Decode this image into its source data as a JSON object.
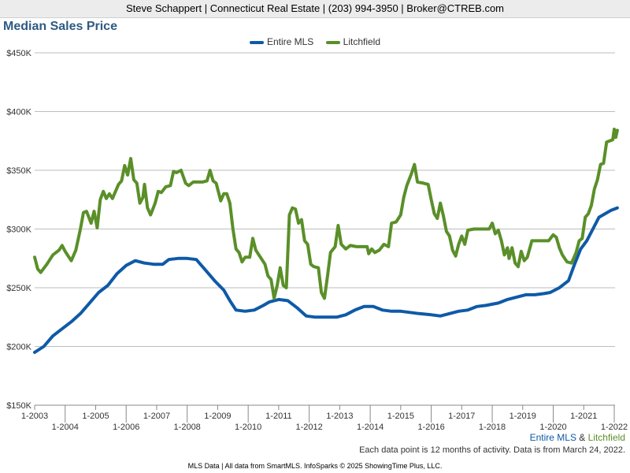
{
  "header": {
    "contact": "Steve Schappert | Connecticut Real Estate | (203) 994-3950 | Broker@CTREB.com"
  },
  "colors": {
    "mls": "#0e5aa7",
    "litchfield": "#5a8f29",
    "title": "#2f5a83",
    "grid": "#bdbdbd"
  },
  "chart_data": {
    "type": "line",
    "title": "Median Sales Price",
    "xlabel": "",
    "ylabel": "",
    "xlim": [
      2003,
      2022.1
    ],
    "ylim": [
      150000,
      450000
    ],
    "y_ticks": [
      150000,
      200000,
      250000,
      300000,
      350000,
      400000,
      450000
    ],
    "y_tick_labels": [
      "$150K",
      "$200K",
      "$250K",
      "$300K",
      "$350K",
      "$400K",
      "$450K"
    ],
    "x_ticks": [
      2003,
      2004,
      2005,
      2006,
      2007,
      2008,
      2009,
      2010,
      2011,
      2012,
      2013,
      2014,
      2015,
      2016,
      2017,
      2018,
      2019,
      2020,
      2021,
      2022
    ],
    "x_tick_labels": [
      "1-2003",
      "1-2004",
      "1-2005",
      "1-2006",
      "1-2007",
      "1-2008",
      "1-2009",
      "1-2010",
      "1-2011",
      "1-2012",
      "1-2013",
      "1-2014",
      "1-2015",
      "1-2016",
      "1-2017",
      "1-2018",
      "1-2019",
      "1-2020",
      "1-2021",
      "1-2022"
    ],
    "grid": "horizontal",
    "legend_position": "top-center",
    "series": [
      {
        "name": "Entire MLS",
        "color": "#0e5aa7",
        "points": [
          [
            2003.0,
            195000
          ],
          [
            2003.3,
            200000
          ],
          [
            2003.6,
            209000
          ],
          [
            2003.9,
            215000
          ],
          [
            2004.2,
            221000
          ],
          [
            2004.5,
            228000
          ],
          [
            2004.8,
            237000
          ],
          [
            2005.1,
            246000
          ],
          [
            2005.4,
            252000
          ],
          [
            2005.7,
            262000
          ],
          [
            2006.0,
            269000
          ],
          [
            2006.3,
            273000
          ],
          [
            2006.6,
            271000
          ],
          [
            2006.9,
            270000
          ],
          [
            2007.2,
            270000
          ],
          [
            2007.4,
            274000
          ],
          [
            2007.7,
            275000
          ],
          [
            2008.0,
            275000
          ],
          [
            2008.3,
            274000
          ],
          [
            2008.6,
            265000
          ],
          [
            2008.9,
            256000
          ],
          [
            2009.2,
            248000
          ],
          [
            2009.4,
            239000
          ],
          [
            2009.6,
            231000
          ],
          [
            2009.9,
            230000
          ],
          [
            2010.2,
            231000
          ],
          [
            2010.5,
            235000
          ],
          [
            2010.7,
            238000
          ],
          [
            2011.0,
            240000
          ],
          [
            2011.3,
            239000
          ],
          [
            2011.6,
            233000
          ],
          [
            2011.9,
            226000
          ],
          [
            2012.2,
            225000
          ],
          [
            2012.5,
            225000
          ],
          [
            2012.9,
            225000
          ],
          [
            2013.2,
            227000
          ],
          [
            2013.5,
            231000
          ],
          [
            2013.8,
            234000
          ],
          [
            2014.1,
            234000
          ],
          [
            2014.4,
            231000
          ],
          [
            2014.7,
            230000
          ],
          [
            2015.0,
            230000
          ],
          [
            2015.3,
            229000
          ],
          [
            2015.6,
            228000
          ],
          [
            2016.0,
            227000
          ],
          [
            2016.3,
            226000
          ],
          [
            2016.6,
            228000
          ],
          [
            2016.9,
            230000
          ],
          [
            2017.2,
            231000
          ],
          [
            2017.5,
            234000
          ],
          [
            2017.8,
            235000
          ],
          [
            2018.2,
            237000
          ],
          [
            2018.5,
            240000
          ],
          [
            2018.8,
            242000
          ],
          [
            2019.1,
            244000
          ],
          [
            2019.4,
            244000
          ],
          [
            2019.7,
            245000
          ],
          [
            2019.9,
            246000
          ],
          [
            2020.2,
            250000
          ],
          [
            2020.5,
            256000
          ],
          [
            2020.7,
            270000
          ],
          [
            2020.9,
            283000
          ],
          [
            2021.1,
            290000
          ],
          [
            2021.3,
            300000
          ],
          [
            2021.5,
            310000
          ],
          [
            2021.7,
            313000
          ],
          [
            2021.9,
            316000
          ],
          [
            2022.1,
            318000
          ]
        ]
      },
      {
        "name": "Litchfield",
        "color": "#5a8f29",
        "points": [
          [
            2003.0,
            276000
          ],
          [
            2003.1,
            266000
          ],
          [
            2003.2,
            263000
          ],
          [
            2003.4,
            270000
          ],
          [
            2003.6,
            278000
          ],
          [
            2003.8,
            282000
          ],
          [
            2003.9,
            286000
          ],
          [
            2004.0,
            281000
          ],
          [
            2004.1,
            277000
          ],
          [
            2004.2,
            273000
          ],
          [
            2004.35,
            282000
          ],
          [
            2004.5,
            300000
          ],
          [
            2004.6,
            314000
          ],
          [
            2004.7,
            315000
          ],
          [
            2004.85,
            305000
          ],
          [
            2004.95,
            315000
          ],
          [
            2005.05,
            301000
          ],
          [
            2005.15,
            325000
          ],
          [
            2005.25,
            332000
          ],
          [
            2005.35,
            326000
          ],
          [
            2005.45,
            330000
          ],
          [
            2005.55,
            326000
          ],
          [
            2005.75,
            338000
          ],
          [
            2005.85,
            341000
          ],
          [
            2005.95,
            354000
          ],
          [
            2006.05,
            346000
          ],
          [
            2006.15,
            360000
          ],
          [
            2006.25,
            342000
          ],
          [
            2006.35,
            339000
          ],
          [
            2006.45,
            322000
          ],
          [
            2006.55,
            327000
          ],
          [
            2006.6,
            338000
          ],
          [
            2006.7,
            318000
          ],
          [
            2006.8,
            312000
          ],
          [
            2006.95,
            322000
          ],
          [
            2007.05,
            332000
          ],
          [
            2007.15,
            331000
          ],
          [
            2007.3,
            336000
          ],
          [
            2007.45,
            337000
          ],
          [
            2007.55,
            349000
          ],
          [
            2007.65,
            348000
          ],
          [
            2007.8,
            350000
          ],
          [
            2007.95,
            339000
          ],
          [
            2008.05,
            337000
          ],
          [
            2008.2,
            340000
          ],
          [
            2008.5,
            340000
          ],
          [
            2008.65,
            341000
          ],
          [
            2008.75,
            350000
          ],
          [
            2008.85,
            341000
          ],
          [
            2008.95,
            339000
          ],
          [
            2009.1,
            324000
          ],
          [
            2009.2,
            330000
          ],
          [
            2009.3,
            330000
          ],
          [
            2009.4,
            322000
          ],
          [
            2009.5,
            300000
          ],
          [
            2009.6,
            283000
          ],
          [
            2009.7,
            280000
          ],
          [
            2009.8,
            272000
          ],
          [
            2009.9,
            276000
          ],
          [
            2010.05,
            276000
          ],
          [
            2010.15,
            292000
          ],
          [
            2010.25,
            282000
          ],
          [
            2010.4,
            276000
          ],
          [
            2010.55,
            270000
          ],
          [
            2010.65,
            260000
          ],
          [
            2010.75,
            257000
          ],
          [
            2010.85,
            241000
          ],
          [
            2010.95,
            252000
          ],
          [
            2011.05,
            267000
          ],
          [
            2011.15,
            252000
          ],
          [
            2011.25,
            250000
          ],
          [
            2011.35,
            312000
          ],
          [
            2011.45,
            318000
          ],
          [
            2011.55,
            317000
          ],
          [
            2011.65,
            305000
          ],
          [
            2011.75,
            308000
          ],
          [
            2011.85,
            290000
          ],
          [
            2011.95,
            287000
          ],
          [
            2012.05,
            270000
          ],
          [
            2012.15,
            268000
          ],
          [
            2012.3,
            267000
          ],
          [
            2012.4,
            246000
          ],
          [
            2012.5,
            241000
          ],
          [
            2012.6,
            260000
          ],
          [
            2012.7,
            280000
          ],
          [
            2012.85,
            285000
          ],
          [
            2012.95,
            303000
          ],
          [
            2013.05,
            287000
          ],
          [
            2013.2,
            283000
          ],
          [
            2013.35,
            286000
          ],
          [
            2013.55,
            285000
          ],
          [
            2013.75,
            285000
          ],
          [
            2013.9,
            285000
          ],
          [
            2013.95,
            279000
          ],
          [
            2014.05,
            283000
          ],
          [
            2014.15,
            280000
          ],
          [
            2014.3,
            282000
          ],
          [
            2014.45,
            287000
          ],
          [
            2014.6,
            285000
          ],
          [
            2014.7,
            305000
          ],
          [
            2014.85,
            306000
          ],
          [
            2015.0,
            312000
          ],
          [
            2015.1,
            327000
          ],
          [
            2015.2,
            337000
          ],
          [
            2015.35,
            347000
          ],
          [
            2015.45,
            355000
          ],
          [
            2015.55,
            340000
          ],
          [
            2015.75,
            339000
          ],
          [
            2015.9,
            338000
          ],
          [
            2016.0,
            325000
          ],
          [
            2016.1,
            313000
          ],
          [
            2016.2,
            309000
          ],
          [
            2016.3,
            322000
          ],
          [
            2016.4,
            311000
          ],
          [
            2016.5,
            298000
          ],
          [
            2016.6,
            294000
          ],
          [
            2016.7,
            282000
          ],
          [
            2016.8,
            277000
          ],
          [
            2016.9,
            287000
          ],
          [
            2017.0,
            294000
          ],
          [
            2017.1,
            287000
          ],
          [
            2017.2,
            299000
          ],
          [
            2017.4,
            300000
          ],
          [
            2017.7,
            300000
          ],
          [
            2017.9,
            300000
          ],
          [
            2018.0,
            305000
          ],
          [
            2018.1,
            296000
          ],
          [
            2018.2,
            299000
          ],
          [
            2018.3,
            290000
          ],
          [
            2018.4,
            278000
          ],
          [
            2018.5,
            284000
          ],
          [
            2018.55,
            275000
          ],
          [
            2018.65,
            284000
          ],
          [
            2018.75,
            271000
          ],
          [
            2018.85,
            268000
          ],
          [
            2018.95,
            281000
          ],
          [
            2019.05,
            273000
          ],
          [
            2019.15,
            276000
          ],
          [
            2019.3,
            290000
          ],
          [
            2019.55,
            290000
          ],
          [
            2019.85,
            290000
          ],
          [
            2020.0,
            295000
          ],
          [
            2020.1,
            293000
          ],
          [
            2020.2,
            284000
          ],
          [
            2020.3,
            278000
          ],
          [
            2020.45,
            272000
          ],
          [
            2020.6,
            271000
          ],
          [
            2020.75,
            280000
          ],
          [
            2020.85,
            290000
          ],
          [
            2020.95,
            292000
          ],
          [
            2021.05,
            310000
          ],
          [
            2021.15,
            313000
          ],
          [
            2021.25,
            320000
          ],
          [
            2021.35,
            334000
          ],
          [
            2021.45,
            342000
          ],
          [
            2021.55,
            355000
          ],
          [
            2021.65,
            356000
          ],
          [
            2021.75,
            374000
          ],
          [
            2021.85,
            375000
          ],
          [
            2021.95,
            376000
          ],
          [
            2022.0,
            385000
          ],
          [
            2022.05,
            378000
          ],
          [
            2022.1,
            384000
          ]
        ]
      }
    ]
  },
  "legend": {
    "mls": "Entire MLS",
    "litchfield": "Litchfield"
  },
  "source_label": {
    "mls": "Entire MLS",
    "amp": " & ",
    "litchfield": "Litchfield"
  },
  "note": "Each data point is 12 months of activity. Data is from March 24, 2022.",
  "footer": "MLS Data | All data from SmartMLS. InfoSparks © 2025 ShowingTime Plus, LLC."
}
